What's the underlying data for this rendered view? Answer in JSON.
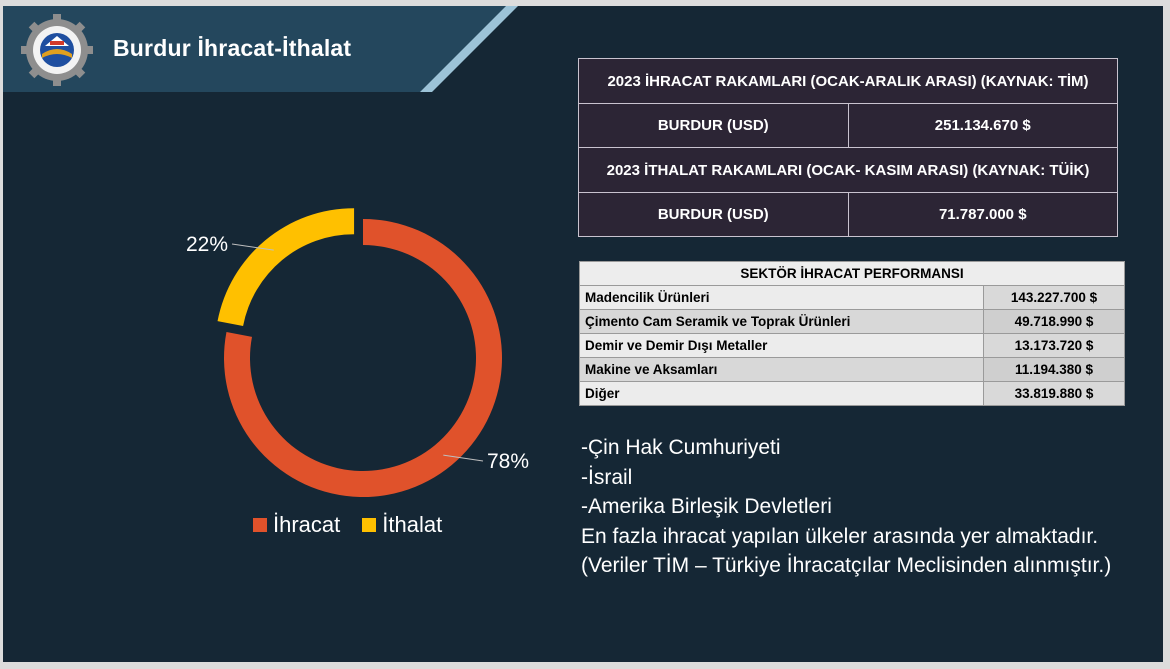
{
  "header": {
    "title": "Burdur İhracat-İthalat"
  },
  "logo": {
    "icon": "chamber-of-commerce-seal-icon",
    "colors": {
      "ring": "#8a8a8a",
      "inner": "#1f4fa0",
      "accent": "#e0a020"
    }
  },
  "chart_data": {
    "type": "pie",
    "variant": "donut",
    "title": "",
    "categories": [
      "İhracat",
      "İthalat"
    ],
    "values": [
      78,
      22
    ],
    "labels": [
      "78%",
      "22%"
    ],
    "colors": [
      "#e0522b",
      "#ffc000"
    ],
    "legend_position": "bottom"
  },
  "summary": {
    "export_header": "2023 İHRACAT RAKAMLARI (OCAK-ARALIK ARASI) (KAYNAK: TİM)",
    "export_label": "BURDUR (USD)",
    "export_value": "251.134.670 $",
    "import_header": "2023 İTHALAT RAKAMLARI  (OCAK- KASIM ARASI) (KAYNAK: TÜİK)",
    "import_label": "BURDUR (USD)",
    "import_value": "71.787.000 $"
  },
  "sector": {
    "title": "SEKTÖR İHRACAT PERFORMANSI",
    "rows": [
      {
        "name": "Madencilik Ürünleri",
        "value": "143.227.700 $"
      },
      {
        "name": "Çimento Cam Seramik ve Toprak Ürünleri",
        "value": "49.718.990 $"
      },
      {
        "name": "Demir ve Demir Dışı Metaller",
        "value": "13.173.720 $"
      },
      {
        "name": "Makine ve Aksamları",
        "value": "11.194.380 $"
      },
      {
        "name": "Diğer",
        "value": "33.819.880 $"
      }
    ]
  },
  "notes": {
    "line1": "-Çin Hak Cumhuriyeti",
    "line2": "-İsrail",
    "line3": "-Amerika Birleşik Devletleri",
    "line4": "En fazla ihracat yapılan ülkeler arasında yer almaktadır.",
    "line5": "(Veriler TİM – Türkiye İhracatçılar Meclisinden alınmıştır.)"
  }
}
